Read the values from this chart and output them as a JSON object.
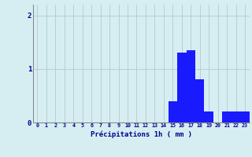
{
  "hours": [
    0,
    1,
    2,
    3,
    4,
    5,
    6,
    7,
    8,
    9,
    10,
    11,
    12,
    13,
    14,
    15,
    16,
    17,
    18,
    19,
    20,
    21,
    22,
    23
  ],
  "values": [
    0,
    0,
    0,
    0,
    0,
    0,
    0,
    0,
    0,
    0,
    0,
    0,
    0,
    0,
    0,
    0.4,
    1.3,
    1.35,
    0.8,
    0.2,
    0,
    0.2,
    0.2,
    0.2
  ],
  "bar_color": "#1a1aff",
  "background_color": "#d6eef2",
  "grid_color": "#b8d0d4",
  "xlabel": "Précipitations 1h ( mm )",
  "xlabel_color": "#00008b",
  "tick_color": "#00008b",
  "ylim": [
    0,
    2.2
  ],
  "yticks": [
    0,
    1,
    2
  ],
  "spine_color": "#888888"
}
